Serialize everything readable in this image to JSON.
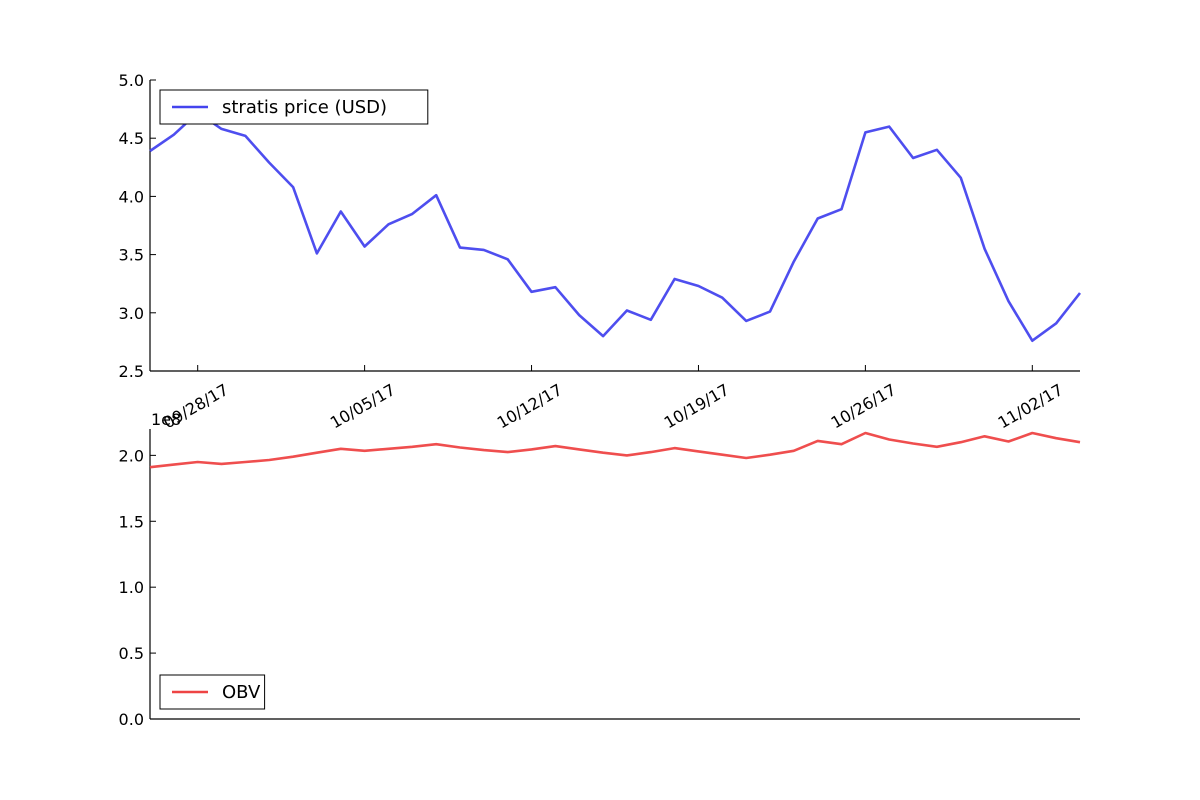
{
  "chart_data": [
    {
      "type": "line",
      "x": [
        "09/26/17",
        "09/27/17",
        "09/28/17",
        "09/29/17",
        "09/30/17",
        "10/01/17",
        "10/02/17",
        "10/03/17",
        "10/04/17",
        "10/05/17",
        "10/06/17",
        "10/07/17",
        "10/08/17",
        "10/09/17",
        "10/10/17",
        "10/11/17",
        "10/12/17",
        "10/13/17",
        "10/14/17",
        "10/15/17",
        "10/16/17",
        "10/17/17",
        "10/18/17",
        "10/19/17",
        "10/20/17",
        "10/21/17",
        "10/22/17",
        "10/23/17",
        "10/24/17",
        "10/25/17",
        "10/26/17",
        "10/27/17",
        "10/28/17",
        "10/29/17",
        "10/30/17",
        "10/31/17",
        "11/01/17",
        "11/02/17",
        "11/03/17",
        "11/04/17"
      ],
      "series": [
        {
          "name": "stratis price (USD)",
          "color": "#4444ee",
          "values": [
            4.39,
            4.53,
            4.72,
            4.58,
            4.52,
            4.29,
            4.08,
            3.51,
            3.87,
            3.57,
            3.76,
            3.85,
            4.01,
            3.56,
            3.54,
            3.46,
            3.18,
            3.22,
            2.98,
            2.8,
            3.02,
            2.94,
            3.29,
            3.23,
            3.13,
            2.93,
            3.01,
            3.44,
            3.81,
            3.89,
            4.55,
            4.6,
            4.33,
            4.4,
            4.16,
            3.55,
            3.1,
            2.76,
            2.91,
            3.17
          ]
        }
      ],
      "xticks": [
        "09/28/17",
        "10/05/17",
        "10/12/17",
        "10/19/17",
        "10/26/17",
        "11/02/17"
      ],
      "yticks": [
        "2.5",
        "3.0",
        "3.5",
        "4.0",
        "4.5",
        "5.0"
      ],
      "ylim": [
        2.5,
        5.0
      ],
      "legend": "upper-left",
      "grid": false
    },
    {
      "type": "line",
      "x": [
        "09/26/17",
        "09/27/17",
        "09/28/17",
        "09/29/17",
        "09/30/17",
        "10/01/17",
        "10/02/17",
        "10/03/17",
        "10/04/17",
        "10/05/17",
        "10/06/17",
        "10/07/17",
        "10/08/17",
        "10/09/17",
        "10/10/17",
        "10/11/17",
        "10/12/17",
        "10/13/17",
        "10/14/17",
        "10/15/17",
        "10/16/17",
        "10/17/17",
        "10/18/17",
        "10/19/17",
        "10/20/17",
        "10/21/17",
        "10/22/17",
        "10/23/17",
        "10/24/17",
        "10/25/17",
        "10/26/17",
        "10/27/17",
        "10/28/17",
        "10/29/17",
        "10/30/17",
        "10/31/17",
        "11/01/17",
        "11/02/17",
        "11/03/17",
        "11/04/17"
      ],
      "series": [
        {
          "name": "OBV",
          "color": "#ee4444",
          "values": [
            1.91,
            1.93,
            1.95,
            1.935,
            1.95,
            1.965,
            1.99,
            2.02,
            2.05,
            2.035,
            2.05,
            2.065,
            2.085,
            2.06,
            2.04,
            2.025,
            2.045,
            2.07,
            2.045,
            2.02,
            2.0,
            2.025,
            2.055,
            2.03,
            2.005,
            1.98,
            2.005,
            2.035,
            2.11,
            2.085,
            2.17,
            2.12,
            2.09,
            2.065,
            2.1,
            2.145,
            2.105,
            2.17,
            2.13,
            2.1
          ]
        }
      ],
      "yticks": [
        "0.0",
        "0.5",
        "1.0",
        "1.5",
        "2.0"
      ],
      "ylim": [
        0.0,
        2.2
      ],
      "exponent_label": "1e8",
      "legend": "lower-left",
      "grid": false
    }
  ]
}
